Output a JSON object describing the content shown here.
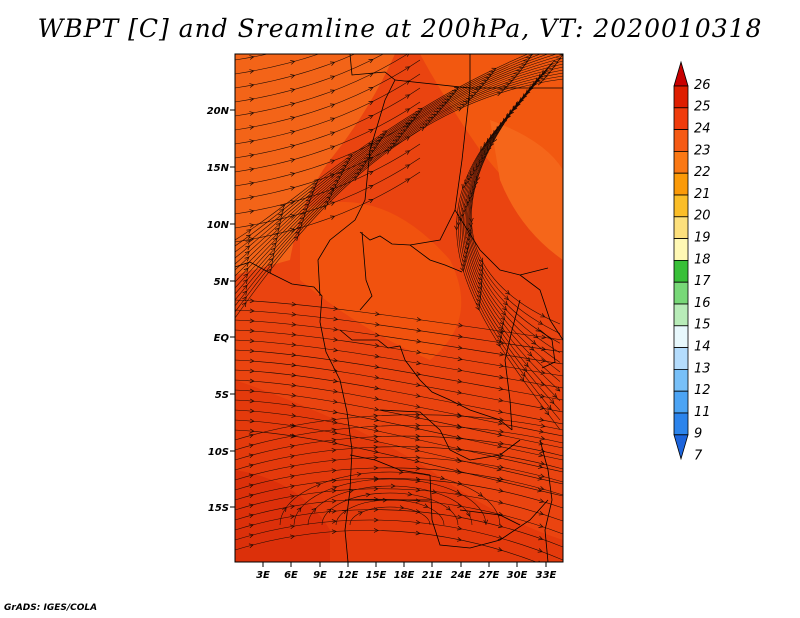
{
  "title": "WBPT [C] and Sreamline at 200hPa, VT: 2020010318",
  "credit": "GrADS: IGES/COLA",
  "map": {
    "lat_ticks": [
      "20N",
      "15N",
      "10N",
      "5N",
      "EQ",
      "5S",
      "10S",
      "15S"
    ],
    "lon_ticks": [
      "3E",
      "6E",
      "9E",
      "12E",
      "15E",
      "18E",
      "21E",
      "24E",
      "27E",
      "30E",
      "33E"
    ],
    "field_colors": {
      "low_band": "#e63a0c",
      "mid_band": "#f2520f",
      "high_band": "#f5661a",
      "streamline": "#1a0a05",
      "border": "#000000"
    }
  },
  "colorbar": {
    "levels": [
      "26",
      "25",
      "24",
      "23",
      "22",
      "21",
      "20",
      "19",
      "18",
      "17",
      "16",
      "15",
      "14",
      "13",
      "12",
      "11",
      "9",
      "7"
    ],
    "colors": [
      "#c80000",
      "#de1e00",
      "#f03c0c",
      "#f55a14",
      "#fa7814",
      "#fb9a08",
      "#fbbe28",
      "#fde07c",
      "#fff8b4",
      "#38c038",
      "#78d878",
      "#b8ecb8",
      "#e8f8fc",
      "#b4dcfc",
      "#78c0f8",
      "#4ca4f4",
      "#2c84ec",
      "#1c64dc"
    ]
  }
}
